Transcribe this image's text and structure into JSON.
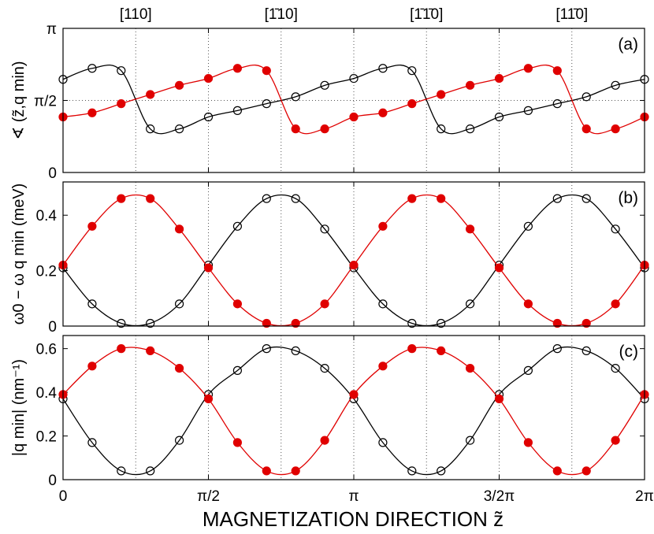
{
  "xlabel": "MAGNETIZATION DIRECTION  z̃",
  "x_ticks": [
    "0",
    "π/2",
    "π",
    "3/2π",
    "2π"
  ],
  "top_axis_labels": [
    "[110]",
    "[1̄10]",
    "[1̄1̄0]",
    "[11̄0]"
  ],
  "colors": {
    "series_open": "#000000",
    "series_filled": "#e00000",
    "frame": "#000000",
    "grid": "#555555"
  },
  "chart_data": [
    {
      "type": "scatter",
      "panel_label": "(a)",
      "ylabel": "∢ (z̃,q min)",
      "ylim": [
        0,
        3.1416
      ],
      "yticks": [
        "0",
        "π/2",
        "π"
      ],
      "xlim": [
        0,
        6.2832
      ],
      "grid": "dotted",
      "x": [
        0,
        0.3142,
        0.6283,
        0.9425,
        1.2566,
        1.5708,
        1.885,
        2.1991,
        2.5133,
        2.8274,
        3.1416,
        3.4558,
        3.7699,
        4.0841,
        4.3982,
        4.7124,
        5.0265,
        5.3407,
        5.6549,
        5.969,
        6.2832
      ],
      "series": [
        {
          "marker": "open-circle",
          "color": "#000000",
          "values": [
            2.03,
            2.27,
            2.22,
            0.95,
            0.95,
            1.21,
            1.35,
            1.5,
            1.65,
            1.9,
            2.05,
            2.27,
            2.22,
            0.95,
            0.95,
            1.21,
            1.35,
            1.5,
            1.65,
            1.9,
            2.03
          ]
        },
        {
          "marker": "filled-circle",
          "color": "#e00000",
          "values": [
            1.21,
            1.3,
            1.5,
            1.7,
            1.9,
            2.05,
            2.27,
            2.22,
            0.95,
            0.95,
            1.21,
            1.3,
            1.5,
            1.7,
            1.9,
            2.05,
            2.27,
            2.22,
            0.95,
            0.95,
            1.21
          ]
        }
      ]
    },
    {
      "type": "scatter",
      "panel_label": "(b)",
      "ylabel": "ω0 − ω q min (meV)",
      "ylim": [
        0,
        0.52
      ],
      "yticks": [
        "0",
        "0.2",
        "0.4"
      ],
      "xlim": [
        0,
        6.2832
      ],
      "x": [
        0,
        0.3142,
        0.6283,
        0.9425,
        1.2566,
        1.5708,
        1.885,
        2.1991,
        2.5133,
        2.8274,
        3.1416,
        3.4558,
        3.7699,
        4.0841,
        4.3982,
        4.7124,
        5.0265,
        5.3407,
        5.6549,
        5.969,
        6.2832
      ],
      "series": [
        {
          "marker": "open-circle",
          "color": "#000000",
          "values": [
            0.21,
            0.08,
            0.01,
            0.01,
            0.08,
            0.22,
            0.36,
            0.46,
            0.46,
            0.35,
            0.21,
            0.08,
            0.01,
            0.01,
            0.08,
            0.22,
            0.36,
            0.46,
            0.46,
            0.35,
            0.21
          ]
        },
        {
          "marker": "filled-circle",
          "color": "#e00000",
          "values": [
            0.22,
            0.36,
            0.46,
            0.46,
            0.35,
            0.21,
            0.08,
            0.01,
            0.01,
            0.08,
            0.22,
            0.36,
            0.46,
            0.46,
            0.35,
            0.21,
            0.08,
            0.01,
            0.01,
            0.08,
            0.22
          ]
        }
      ]
    },
    {
      "type": "scatter",
      "panel_label": "(c)",
      "ylabel": "|q min| (nm⁻¹)",
      "ylim": [
        0,
        0.66
      ],
      "yticks": [
        "0",
        "0.2",
        "0.4",
        "0.6"
      ],
      "xlim": [
        0,
        6.2832
      ],
      "x": [
        0,
        0.3142,
        0.6283,
        0.9425,
        1.2566,
        1.5708,
        1.885,
        2.1991,
        2.5133,
        2.8274,
        3.1416,
        3.4558,
        3.7699,
        4.0841,
        4.3982,
        4.7124,
        5.0265,
        5.3407,
        5.6549,
        5.969,
        6.2832
      ],
      "series": [
        {
          "marker": "open-circle",
          "color": "#000000",
          "values": [
            0.37,
            0.17,
            0.04,
            0.04,
            0.18,
            0.39,
            0.5,
            0.6,
            0.59,
            0.51,
            0.37,
            0.17,
            0.04,
            0.04,
            0.18,
            0.39,
            0.5,
            0.6,
            0.59,
            0.51,
            0.37
          ]
        },
        {
          "marker": "filled-circle",
          "color": "#e00000",
          "values": [
            0.39,
            0.52,
            0.6,
            0.59,
            0.51,
            0.37,
            0.17,
            0.04,
            0.04,
            0.18,
            0.39,
            0.52,
            0.6,
            0.59,
            0.51,
            0.37,
            0.17,
            0.04,
            0.04,
            0.18,
            0.39
          ]
        }
      ]
    }
  ]
}
